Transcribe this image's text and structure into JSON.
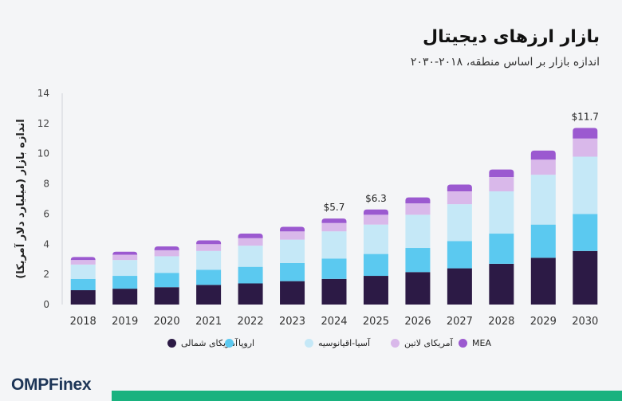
{
  "title": "بازار ارزهای دیجیتال",
  "subtitle": "اندازه بازار بر اساس منطقه، ۲۰۱۸-۲۰۳۰",
  "brand": "OMPFinex",
  "chart_data": {
    "type": "bar",
    "stacked": true,
    "ylabel": "اندازه بازار (میلیارد دلار آمریکا)",
    "ylim": [
      0,
      14
    ],
    "yticks": [
      0,
      2,
      4,
      6,
      8,
      10,
      12,
      14
    ],
    "grid": false,
    "legend_position": "bottom",
    "categories": [
      "2018",
      "2019",
      "2020",
      "2021",
      "2022",
      "2023",
      "2024",
      "2025",
      "2026",
      "2027",
      "2028",
      "2029",
      "2030"
    ],
    "series": [
      {
        "name": "آمریکای شمالی",
        "color": "#2c1a45",
        "values": [
          0.95,
          1.05,
          1.15,
          1.3,
          1.4,
          1.55,
          1.7,
          1.9,
          2.15,
          2.4,
          2.7,
          3.1,
          3.55
        ]
      },
      {
        "name": "اروپا",
        "color": "#5bc9f0",
        "values": [
          0.75,
          0.85,
          0.95,
          1.0,
          1.1,
          1.2,
          1.35,
          1.45,
          1.6,
          1.8,
          2.0,
          2.2,
          2.45
        ]
      },
      {
        "name": "آسیا-اقیانوسیه",
        "color": "#c5e8f7",
        "values": [
          0.95,
          1.05,
          1.1,
          1.25,
          1.4,
          1.55,
          1.8,
          1.95,
          2.2,
          2.45,
          2.8,
          3.3,
          3.8
        ]
      },
      {
        "name": "آمریکای لاتین",
        "color": "#d9b8ea",
        "values": [
          0.3,
          0.35,
          0.4,
          0.45,
          0.5,
          0.55,
          0.55,
          0.65,
          0.75,
          0.85,
          0.95,
          1.0,
          1.2
        ]
      },
      {
        "name": "MEA",
        "color": "#9b59d0",
        "values": [
          0.2,
          0.2,
          0.25,
          0.25,
          0.3,
          0.3,
          0.3,
          0.35,
          0.4,
          0.45,
          0.5,
          0.6,
          0.7
        ]
      }
    ],
    "annotations": [
      {
        "category": "2024",
        "text": "$5.7"
      },
      {
        "category": "2025",
        "text": "$6.3"
      },
      {
        "category": "2030",
        "text": "$11.7"
      }
    ]
  }
}
